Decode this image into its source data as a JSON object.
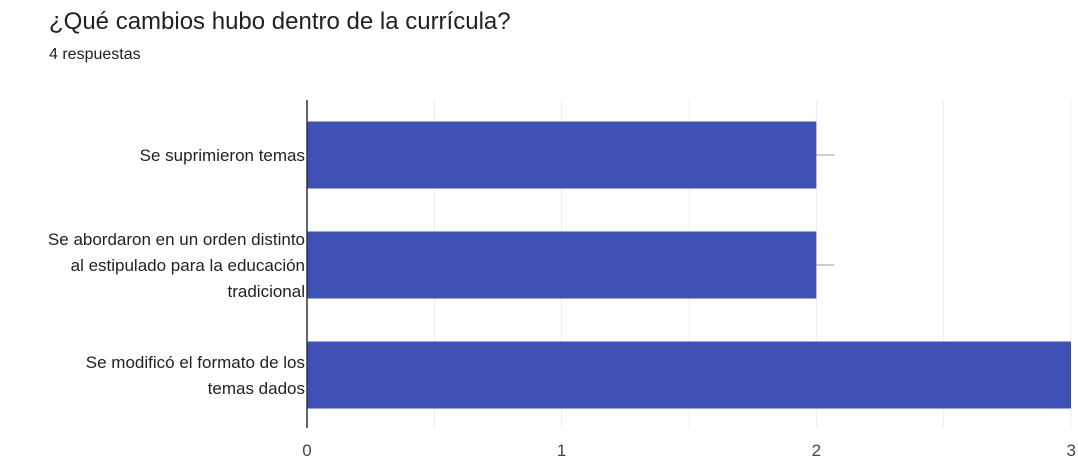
{
  "form": {
    "question": "¿Qué cambios hubo dentro de la currícula?",
    "responses": "4 respuestas"
  },
  "colors": {
    "bar": "#3f51b5",
    "grid": "#ececec",
    "axis": "#333333",
    "whisker": "#9e9e9e"
  },
  "chart_data": {
    "type": "bar",
    "orientation": "horizontal",
    "title": "¿Qué cambios hubo dentro de la currícula?",
    "subtitle": "4 respuestas",
    "categories": [
      [
        "Se suprimieron temas"
      ],
      [
        "Se abordaron en un orden distinto",
        "al estipulado para la educación",
        "tradicional"
      ],
      [
        "Se modificó el formato de los",
        "temas dados"
      ]
    ],
    "values": [
      2,
      2,
      3
    ],
    "xlim": [
      0,
      3
    ],
    "xticks": [
      "0",
      "1",
      "2",
      "3"
    ],
    "xlabel": "",
    "ylabel": "",
    "grid": true,
    "legend": "none"
  }
}
